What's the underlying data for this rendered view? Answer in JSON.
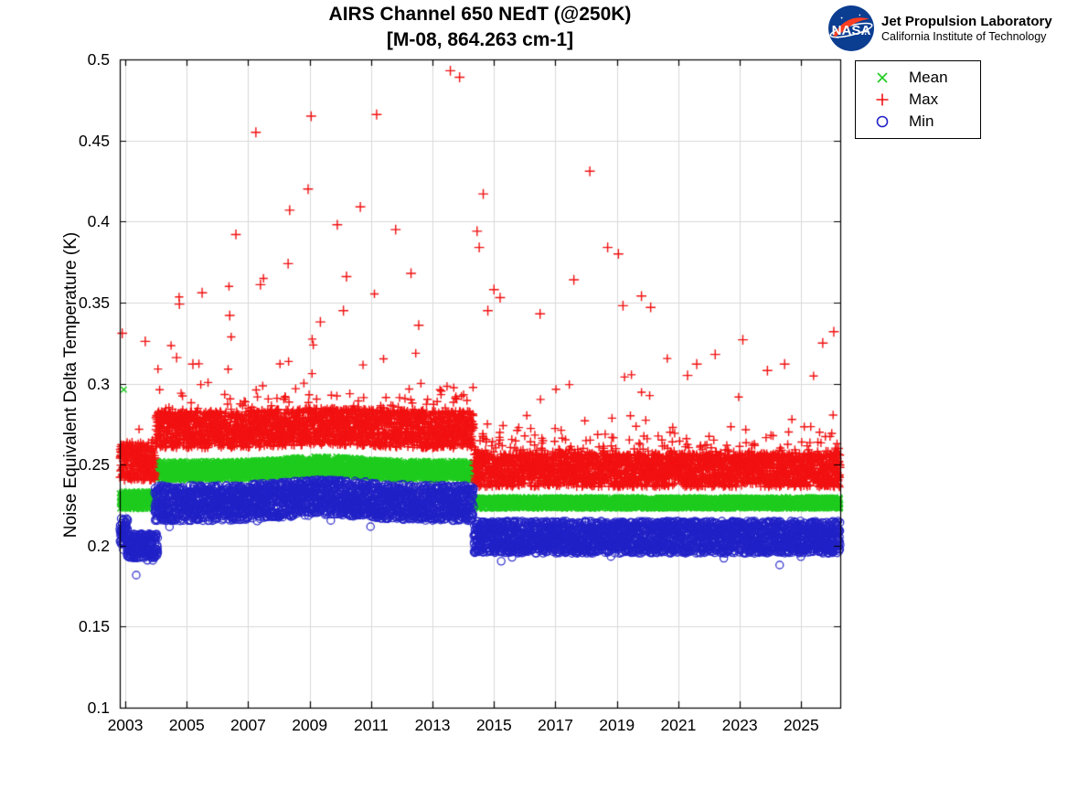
{
  "title": {
    "line1": "AIRS Channel 650 NEdT (@250K)",
    "line2": "[M-08, 864.263 cm-1]"
  },
  "logo": {
    "nasa": "NASA",
    "org": "Jet Propulsion Laboratory",
    "sub": "California Institute of Technology",
    "nasa_blue": "#0b3d91",
    "nasa_red": "#fc3d21"
  },
  "axes": {
    "y_label": "Noise Equivalent Delta Temperature (K)",
    "x_tick_labels": [
      "2003",
      "2005",
      "2007",
      "2009",
      "2011",
      "2013",
      "2015",
      "2017",
      "2019",
      "2021",
      "2023",
      "2025"
    ],
    "y_tick_labels": [
      "0.1",
      "0.15",
      "0.2",
      "0.25",
      "0.3",
      "0.35",
      "0.4",
      "0.45",
      "0.5"
    ]
  },
  "legend": {
    "entries": [
      {
        "label": "Mean",
        "marker": "x",
        "color": "#1fcc1f"
      },
      {
        "label": "Max",
        "marker": "+",
        "color": "#f21111"
      },
      {
        "label": "Min",
        "marker": "o",
        "color": "#2222c8"
      }
    ]
  },
  "chart_data": {
    "type": "scatter",
    "title": "AIRS Channel 650 NEdT (@250K)",
    "subtitle": "[M-08, 864.263 cm-1]",
    "xlabel": "",
    "ylabel": "Noise Equivalent Delta Temperature (K)",
    "xlim": [
      2002.82,
      2026.27
    ],
    "ylim": [
      0.1,
      0.5
    ],
    "x_ticks": [
      2003,
      2005,
      2007,
      2009,
      2011,
      2013,
      2015,
      2017,
      2019,
      2021,
      2023,
      2025
    ],
    "y_ticks": [
      0.1,
      0.15,
      0.2,
      0.25,
      0.3,
      0.35,
      0.4,
      0.45,
      0.5
    ],
    "grid": true,
    "grid_color": "#d9d9d9",
    "legend_position": "outside-top-right",
    "points_per_year": 230,
    "seed": 987654321,
    "series": [
      {
        "name": "Mean",
        "marker": "x",
        "color": "#1fcc1f",
        "segments": [
          {
            "t0": 2002.82,
            "t1": 2003.98,
            "center": 0.228,
            "spread": 0.0056
          },
          {
            "t0": 2003.98,
            "t1": 2014.34,
            "center": 0.2463,
            "spread": 0.006,
            "bump_t": 2009.4,
            "bump_a": 0.0028,
            "bump_w": 1.8
          },
          {
            "t0": 2014.34,
            "t1": 2026.27,
            "center": 0.2263,
            "spread": 0.0036
          }
        ],
        "outliers": [
          [
            2002.95,
            0.2963
          ]
        ]
      },
      {
        "name": "Max",
        "marker": "+",
        "color": "#f21111",
        "segments": [
          {
            "t0": 2002.82,
            "t1": 2003.98,
            "center": 0.252,
            "spread": 0.0118,
            "tail_p": 0.08,
            "tail_s": 0.005,
            "tail_p2": 0.006,
            "tail_s2": 0.018,
            "cap": 0.3
          },
          {
            "t0": 2003.98,
            "t1": 2014.34,
            "center": 0.2715,
            "spread": 0.0115,
            "bump_t": 2009.4,
            "bump_a": 0.002,
            "bump_w": 2.0,
            "tail_p": 0.1,
            "tail_s": 0.008,
            "tail_p2": 0.013,
            "tail_s2": 0.027,
            "cap": 0.365
          },
          {
            "t0": 2014.34,
            "t1": 2026.27,
            "center": 0.2465,
            "spread": 0.0103,
            "tail_p": 0.2,
            "tail_s": 0.0065,
            "tail_p2": 0.011,
            "tail_s2": 0.022,
            "cap": 0.335
          }
        ],
        "outliers": [
          [
            2013.58,
            0.493
          ],
          [
            2013.88,
            0.489
          ],
          [
            2011.18,
            0.466
          ],
          [
            2009.05,
            0.465
          ],
          [
            2007.25,
            0.455
          ],
          [
            2018.12,
            0.431
          ],
          [
            2008.95,
            0.42
          ],
          [
            2014.65,
            0.417
          ],
          [
            2010.65,
            0.409
          ],
          [
            2008.35,
            0.407
          ],
          [
            2009.9,
            0.398
          ],
          [
            2011.8,
            0.395
          ],
          [
            2014.45,
            0.394
          ],
          [
            2006.6,
            0.392
          ],
          [
            2018.7,
            0.384
          ],
          [
            2014.52,
            0.384
          ],
          [
            2019.05,
            0.38
          ],
          [
            2008.3,
            0.374
          ],
          [
            2012.3,
            0.368
          ],
          [
            2010.2,
            0.366
          ],
          [
            2017.6,
            0.364
          ],
          [
            2007.4,
            0.361
          ],
          [
            2015.0,
            0.358
          ],
          [
            2005.5,
            0.356
          ],
          [
            2019.8,
            0.354
          ],
          [
            2015.2,
            0.353
          ],
          [
            2004.76,
            0.349
          ],
          [
            2019.2,
            0.348
          ],
          [
            2020.1,
            0.347
          ],
          [
            2010.1,
            0.345
          ],
          [
            2014.8,
            0.345
          ],
          [
            2016.5,
            0.343
          ],
          [
            2006.4,
            0.342
          ],
          [
            2009.35,
            0.338
          ],
          [
            2012.55,
            0.336
          ],
          [
            2026.06,
            0.332
          ],
          [
            2002.9,
            0.331
          ],
          [
            2023.1,
            0.327
          ],
          [
            2003.65,
            0.326
          ],
          [
            2025.7,
            0.325
          ],
          [
            2022.2,
            0.318
          ],
          [
            2004.67,
            0.316
          ],
          [
            2024.46,
            0.312
          ],
          [
            2005.2,
            0.312
          ],
          [
            2021.6,
            0.312
          ],
          [
            2023.9,
            0.308
          ],
          [
            2021.3,
            0.305
          ]
        ]
      },
      {
        "name": "Min",
        "marker": "o",
        "color": "#2222c8",
        "segments": [
          {
            "t0": 2002.82,
            "t1": 2003.08,
            "center": 0.2085,
            "spread": 0.009,
            "stray_p": 0.02,
            "stray_m": 0.006
          },
          {
            "t0": 2003.05,
            "t1": 2004.06,
            "center": 0.1998,
            "spread": 0.0076,
            "stray_p": 0.03,
            "stray_m": 0.007
          },
          {
            "t0": 2003.95,
            "t1": 2014.34,
            "center": 0.2262,
            "spread": 0.011,
            "bump_t": 2009.5,
            "bump_a": 0.0035,
            "bump_w": 2.0,
            "stray_p": 0.006,
            "stray_m": 0.013
          },
          {
            "t0": 2014.34,
            "t1": 2026.27,
            "center": 0.2052,
            "spread": 0.01,
            "stray_p": 0.005,
            "stray_m": 0.011
          }
        ],
        "outliers": []
      }
    ]
  }
}
